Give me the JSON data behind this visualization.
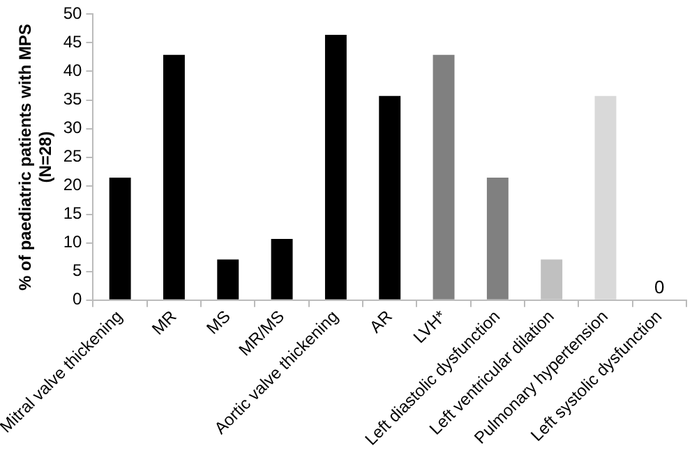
{
  "chart_data": {
    "type": "bar",
    "ylabel": "% of paediatric patients with MPS\n(N=28)",
    "categories": [
      "Mitral valve thickening",
      "MR",
      "MS",
      "MR/MS",
      "Aortic valve thickening",
      "AR",
      "LVH*",
      "Left diastolic dysfunction",
      "Left ventricular dilation",
      "Pulmonary hypertension",
      "Left systolic dysfunction"
    ],
    "values": [
      21.4,
      42.9,
      7.1,
      10.7,
      46.4,
      35.7,
      42.9,
      21.4,
      7.1,
      35.7,
      0
    ],
    "colors": [
      "#000000",
      "#000000",
      "#000000",
      "#000000",
      "#000000",
      "#000000",
      "#808080",
      "#808080",
      "#c0c0c0",
      "#d9d9d9",
      "#d9d9d9"
    ],
    "value_labels": [
      null,
      null,
      null,
      null,
      null,
      null,
      null,
      null,
      null,
      null,
      "0"
    ],
    "ylim": [
      0,
      50
    ],
    "yticks": [
      0,
      5,
      10,
      15,
      20,
      25,
      30,
      35,
      40,
      45,
      50
    ],
    "grid": false,
    "legend": false
  }
}
